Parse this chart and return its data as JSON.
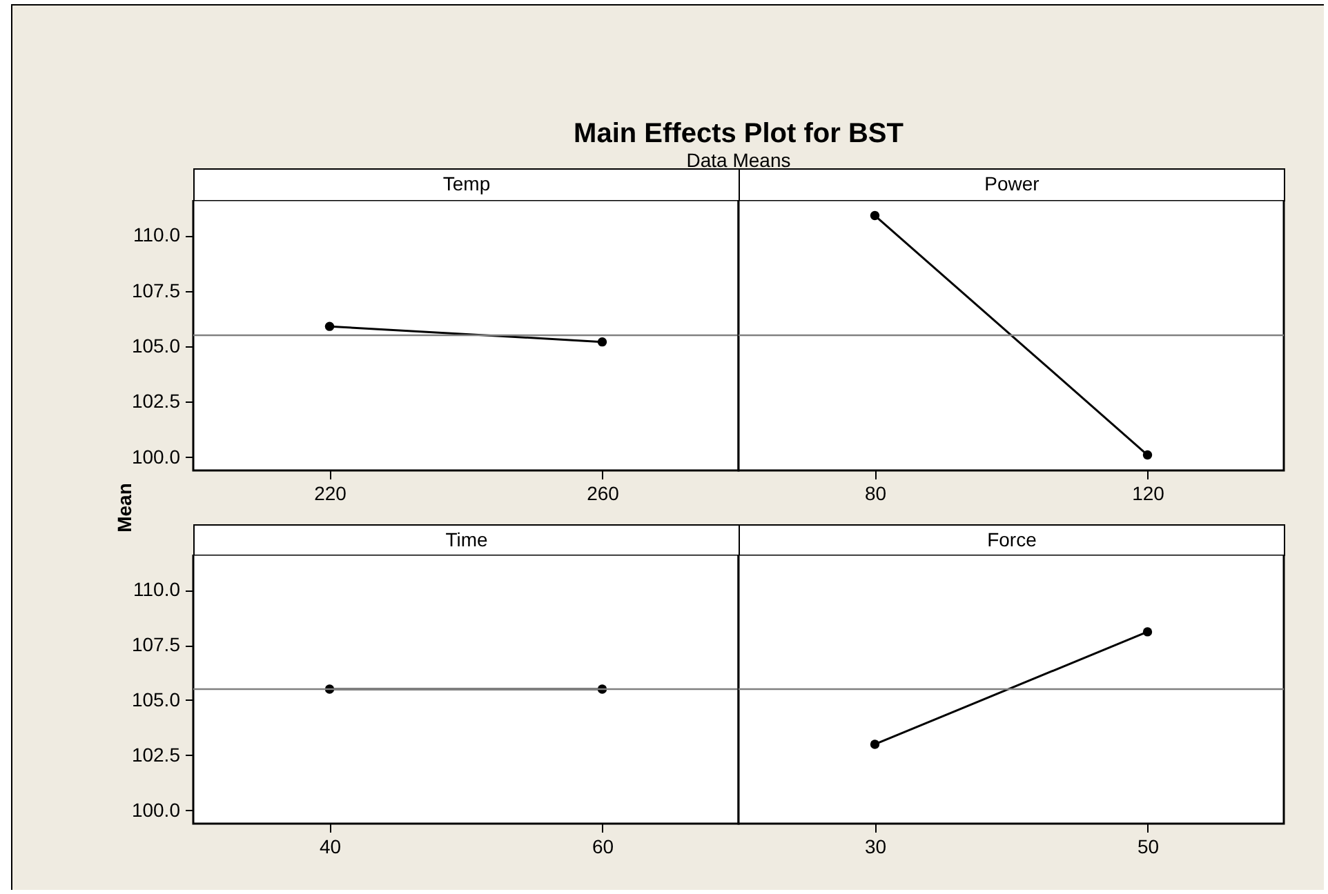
{
  "chart_data": [
    {
      "type": "line",
      "title": "Main Effects Plot for BST",
      "subtitle": "Data Means",
      "ylabel": "Mean",
      "xlabel": "Temp",
      "categories": [
        "220",
        "260"
      ],
      "series": [
        {
          "color": "#000000",
          "values": [
            105.9,
            105.2
          ]
        }
      ],
      "ylim": [
        99.4,
        111.6
      ],
      "yticks": [
        {
          "value": 100,
          "label": "100.0"
        },
        {
          "value": 102.5,
          "label": "102.5"
        },
        {
          "value": 105,
          "label": "105.0"
        },
        {
          "value": 107.5,
          "label": "107.5"
        },
        {
          "value": 110,
          "label": "110.0"
        }
      ],
      "ref_lines": [
        {
          "axis": "y",
          "value": 105.5,
          "color": "#808080"
        }
      ],
      "marker": "circle",
      "grid": false
    },
    {
      "type": "line",
      "xlabel": "Power",
      "categories": [
        "80",
        "120"
      ],
      "series": [
        {
          "color": "#000000",
          "values": [
            110.9,
            100.1
          ]
        }
      ],
      "ylim": [
        99.4,
        111.6
      ],
      "ref_lines": [
        {
          "axis": "y",
          "value": 105.5,
          "color": "#808080"
        }
      ],
      "marker": "circle",
      "grid": false,
      "tick_labels": "x"
    },
    {
      "type": "line",
      "xlabel": "Time",
      "categories": [
        "40",
        "60"
      ],
      "series": [
        {
          "color": "#000000",
          "values": [
            105.5,
            105.5
          ]
        }
      ],
      "ylim": [
        99.4,
        111.6
      ],
      "yticks": [
        {
          "value": 100,
          "label": "100.0"
        },
        {
          "value": 102.5,
          "label": "102.5"
        },
        {
          "value": 105,
          "label": "105.0"
        },
        {
          "value": 107.5,
          "label": "107.5"
        },
        {
          "value": 110,
          "label": "110.0"
        }
      ],
      "ref_lines": [
        {
          "axis": "y",
          "value": 105.5,
          "color": "#808080"
        }
      ],
      "marker": "circle",
      "grid": false
    },
    {
      "type": "line",
      "xlabel": "Force",
      "categories": [
        "30",
        "50"
      ],
      "series": [
        {
          "color": "#000000",
          "values": [
            103.0,
            108.1
          ]
        }
      ],
      "ylim": [
        99.4,
        111.6
      ],
      "ref_lines": [
        {
          "axis": "y",
          "value": 105.5,
          "color": "#808080"
        }
      ],
      "marker": "circle",
      "grid": false,
      "tick_labels": "x"
    }
  ]
}
